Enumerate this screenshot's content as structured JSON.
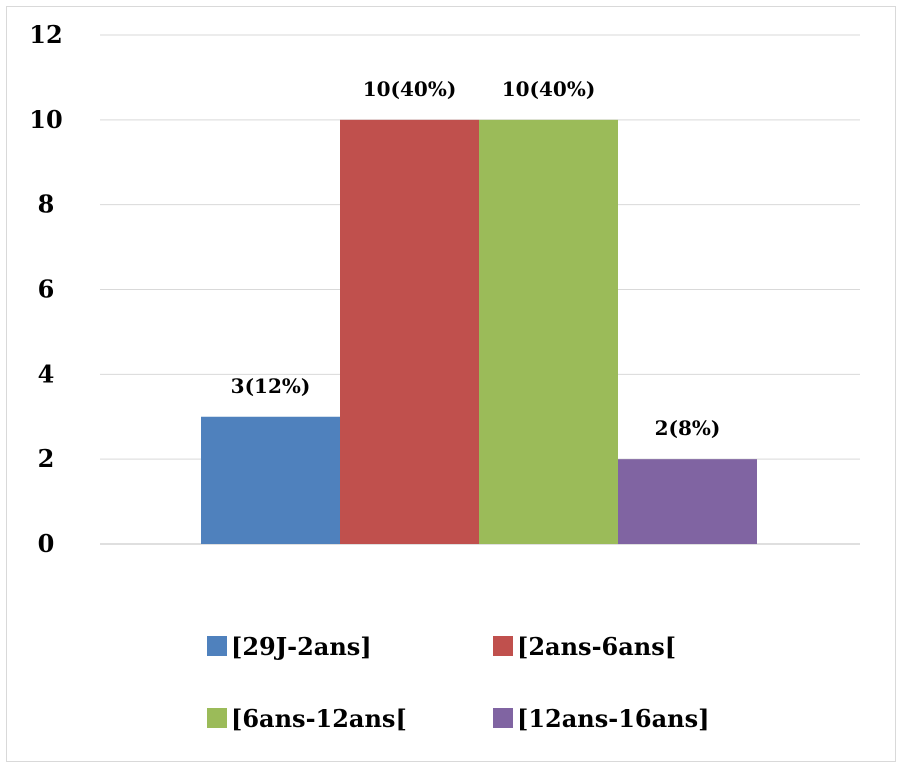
{
  "chart_data": {
    "type": "bar",
    "title": "",
    "xlabel": "",
    "ylabel": "",
    "ylim": [
      0,
      12
    ],
    "yticks": [
      0,
      2,
      4,
      6,
      8,
      10,
      12
    ],
    "grid": true,
    "legend_position": "bottom",
    "series": [
      {
        "name": "[29J-2ans]",
        "value": 3,
        "label": "3(12%)",
        "color": "#4f81bd"
      },
      {
        "name": "[2ans-6ans[",
        "value": 10,
        "label": "10(40%)",
        "color": "#c0504d"
      },
      {
        "name": "[6ans-12ans[",
        "value": 10,
        "label": "10(40%)",
        "color": "#9bbb59"
      },
      {
        "name": "[12ans-16ans]",
        "value": 2,
        "label": "2(8%)",
        "color": "#8064a2"
      }
    ]
  }
}
